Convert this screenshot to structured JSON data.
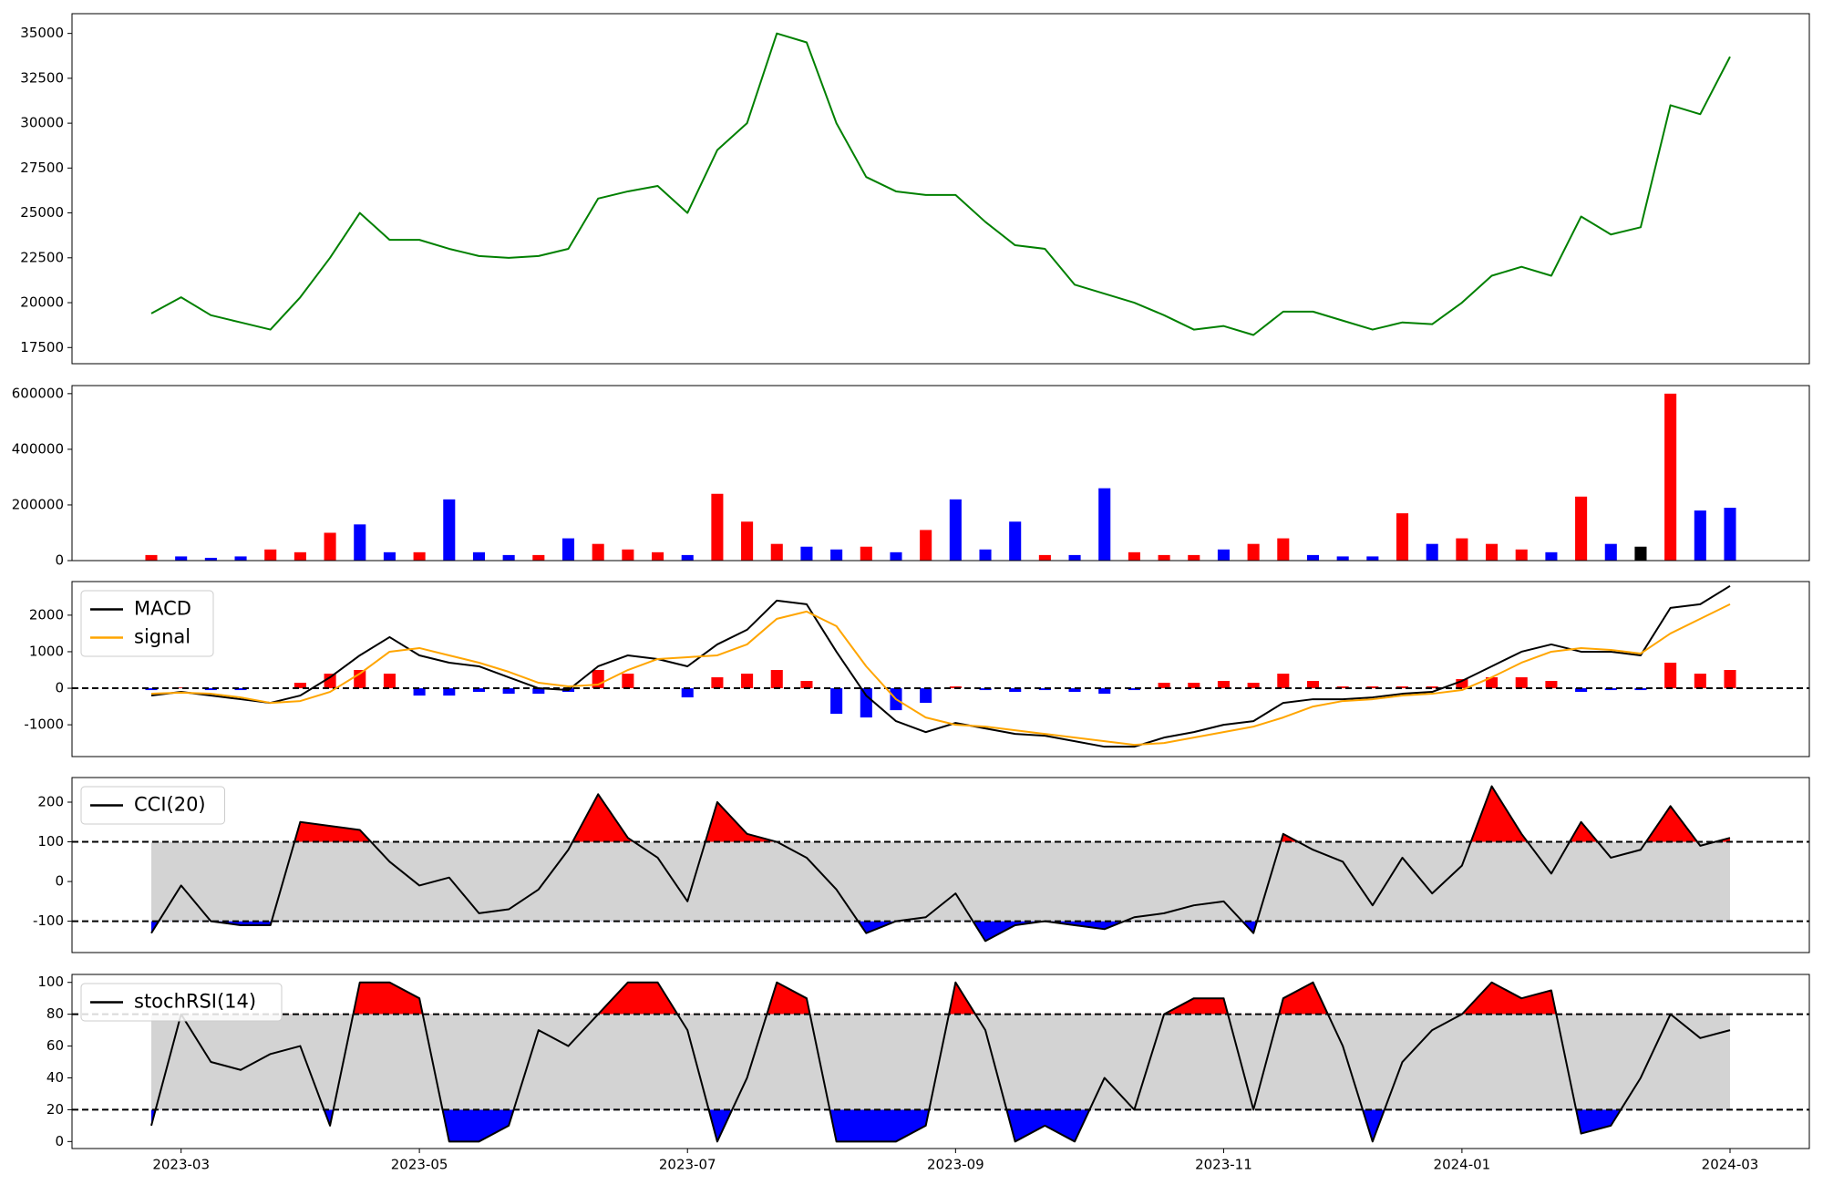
{
  "chart_data": {
    "type": "panels",
    "categories": [
      null,
      "2023-03",
      null,
      null,
      null,
      null,
      null,
      null,
      null,
      "2023-05",
      null,
      null,
      null,
      null,
      null,
      null,
      null,
      null,
      "2023-07",
      null,
      null,
      null,
      null,
      null,
      null,
      null,
      null,
      "2023-09",
      null,
      null,
      null,
      null,
      null,
      null,
      null,
      null,
      "2023-11",
      null,
      null,
      null,
      null,
      null,
      null,
      null,
      "2024-01",
      null,
      null,
      null,
      null,
      null,
      null,
      null,
      null,
      "2024-03"
    ],
    "panels": [
      {
        "type": "line",
        "ylim": [
          16600,
          36100
        ],
        "yticks": [
          17500,
          20000,
          22500,
          25000,
          27500,
          30000,
          32500,
          35000
        ],
        "series": [
          {
            "color": "#008000",
            "values": [
              19400,
              20300,
              19300,
              18900,
              18500,
              20300,
              22500,
              25000,
              23500,
              23500,
              23000,
              22600,
              22500,
              22600,
              23000,
              25800,
              26200,
              26500,
              25000,
              28500,
              30000,
              35000,
              34500,
              30000,
              27000,
              26200,
              26000,
              26000,
              24500,
              23200,
              23000,
              21000,
              20500,
              20000,
              19300,
              18500,
              18700,
              18200,
              19500,
              19500,
              19000,
              18500,
              18900,
              18800,
              20000,
              21500,
              22000,
              21500,
              24800,
              23800,
              24200,
              31000,
              30500,
              33700
            ]
          }
        ]
      },
      {
        "type": "bar",
        "ylim": [
          0,
          629000
        ],
        "yticks": [
          0,
          200000,
          400000,
          600000
        ],
        "values": [
          20000,
          15000,
          10000,
          15000,
          40000,
          30000,
          100000,
          130000,
          30000,
          30000,
          220000,
          30000,
          20000,
          20000,
          80000,
          60000,
          40000,
          30000,
          20000,
          240000,
          140000,
          60000,
          50000,
          40000,
          50000,
          30000,
          110000,
          220000,
          40000,
          140000,
          20000,
          20000,
          260000,
          30000,
          20000,
          20000,
          40000,
          60000,
          80000,
          20000,
          15000,
          15000,
          170000,
          60000,
          80000,
          60000,
          40000,
          30000,
          230000,
          60000,
          50000,
          600000,
          180000,
          190000
        ],
        "bar_colors": [
          "red",
          "blue",
          "blue",
          "blue",
          "red",
          "red",
          "red",
          "blue",
          "blue",
          "red",
          "blue",
          "blue",
          "blue",
          "red",
          "blue",
          "red",
          "red",
          "red",
          "blue",
          "red",
          "red",
          "red",
          "blue",
          "blue",
          "red",
          "blue",
          "red",
          "blue",
          "blue",
          "blue",
          "red",
          "blue",
          "blue",
          "red",
          "red",
          "red",
          "blue",
          "red",
          "red",
          "blue",
          "blue",
          "blue",
          "red",
          "blue",
          "red",
          "red",
          "red",
          "blue",
          "red",
          "blue",
          "black",
          "red",
          "blue",
          "blue"
        ]
      },
      {
        "type": "macd",
        "ylim": [
          -1870,
          2920
        ],
        "yticks": [
          -1000,
          0,
          1000,
          2000
        ],
        "thresholds": [
          0
        ],
        "legend": "upper left",
        "series": [
          {
            "name": "MACD",
            "color": "#000000",
            "values": [
              -200,
              -100,
              -200,
              -300,
              -400,
              -200,
              300,
              900,
              1400,
              900,
              700,
              600,
              300,
              0,
              -50,
              600,
              900,
              800,
              600,
              1200,
              1600,
              2400,
              2300,
              1000,
              -200,
              -900,
              -1200,
              -950,
              -1100,
              -1250,
              -1300,
              -1450,
              -1600,
              -1600,
              -1350,
              -1200,
              -1000,
              -900,
              -400,
              -300,
              -300,
              -250,
              -150,
              -100,
              200,
              600,
              1000,
              1200,
              1000,
              1000,
              900,
              2200,
              2300,
              2800
            ]
          },
          {
            "name": "signal",
            "color": "#ffa500",
            "values": [
              -150,
              -120,
              -150,
              -250,
              -400,
              -350,
              -100,
              400,
              1000,
              1100,
              900,
              700,
              450,
              150,
              50,
              100,
              500,
              800,
              850,
              900,
              1200,
              1900,
              2100,
              1700,
              600,
              -300,
              -800,
              -1000,
              -1050,
              -1150,
              -1250,
              -1350,
              -1450,
              -1550,
              -1500,
              -1350,
              -1200,
              -1050,
              -800,
              -500,
              -350,
              -300,
              -200,
              -150,
              -50,
              300,
              700,
              1000,
              1100,
              1050,
              950,
              1500,
              1900,
              2300
            ]
          }
        ],
        "histogram": {
          "up_color": "#ff0000",
          "down_color": "#0000ff",
          "values": [
            -50,
            20,
            -50,
            -50,
            0,
            150,
            400,
            500,
            400,
            -200,
            -200,
            -100,
            -150,
            -150,
            -100,
            500,
            400,
            0,
            -250,
            300,
            400,
            500,
            200,
            -700,
            -800,
            -600,
            -400,
            50,
            -50,
            -100,
            -50,
            -100,
            -150,
            -50,
            150,
            150,
            200,
            150,
            400,
            200,
            50,
            50,
            50,
            50,
            250,
            300,
            300,
            200,
            -100,
            -50,
            -50,
            700,
            400,
            500
          ]
        }
      },
      {
        "type": "oscillator",
        "ylim": [
          -179,
          262
        ],
        "yticks": [
          -100,
          0,
          100,
          200
        ],
        "thresholds": [
          -100,
          100
        ],
        "legend": "upper left",
        "band_color": "#d3d3d3",
        "above_color": "#ff0000",
        "below_color": "#0000ff",
        "series": [
          {
            "name": "CCI(20)",
            "color": "#000000",
            "values": [
              -130,
              -10,
              -100,
              -110,
              -110,
              150,
              140,
              130,
              50,
              -10,
              10,
              -80,
              -70,
              -20,
              80,
              220,
              110,
              60,
              -50,
              200,
              120,
              100,
              60,
              -20,
              -130,
              -100,
              -90,
              -30,
              -150,
              -110,
              -100,
              -110,
              -120,
              -90,
              -80,
              -60,
              -50,
              -130,
              120,
              80,
              50,
              -60,
              60,
              -30,
              40,
              240,
              120,
              20,
              150,
              60,
              80,
              190,
              90,
              110
            ]
          }
        ]
      },
      {
        "type": "oscillator",
        "ylim": [
          -4.4,
          105
        ],
        "yticks": [
          0,
          20,
          40,
          60,
          80,
          100
        ],
        "thresholds": [
          20,
          80
        ],
        "legend": "upper left",
        "band_color": "#d3d3d3",
        "above_color": "#ff0000",
        "below_color": "#0000ff",
        "series": [
          {
            "name": "stochRSI(14)",
            "color": "#000000",
            "values": [
              10,
              80,
              50,
              45,
              55,
              60,
              10,
              100,
              100,
              90,
              0,
              0,
              10,
              70,
              60,
              80,
              100,
              100,
              70,
              0,
              40,
              100,
              90,
              0,
              0,
              0,
              10,
              100,
              70,
              0,
              10,
              0,
              40,
              20,
              80,
              90,
              90,
              20,
              90,
              100,
              60,
              0,
              50,
              70,
              80,
              100,
              90,
              95,
              5,
              10,
              40,
              80,
              65,
              70
            ]
          }
        ]
      }
    ]
  }
}
